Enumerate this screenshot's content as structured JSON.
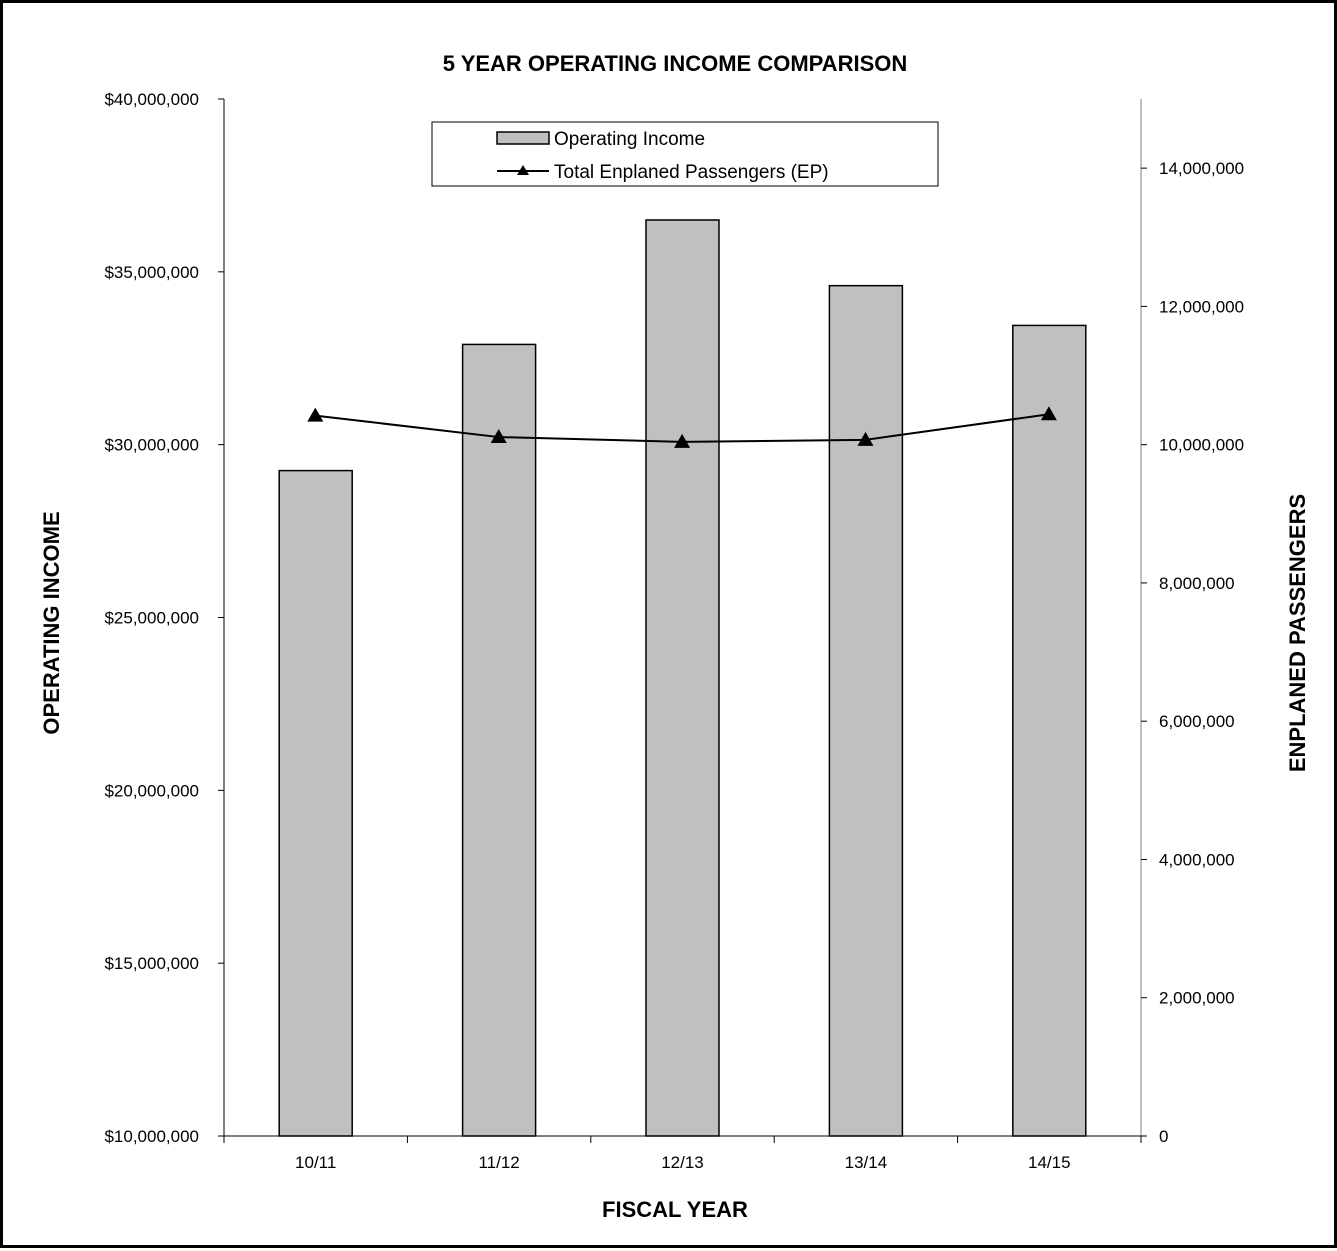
{
  "chart_data": {
    "type": "bar",
    "title": "5 YEAR OPERATING INCOME COMPARISON",
    "xlabel": "FISCAL YEAR",
    "ylabel": "OPERATING INCOME",
    "y2label": "ENPLANED PASSENGERS",
    "categories": [
      "10/11",
      "11/12",
      "12/13",
      "13/14",
      "14/15"
    ],
    "ylim": [
      10000000,
      40000000
    ],
    "y2lim": [
      0,
      15000000
    ],
    "yticks": [
      10000000,
      15000000,
      20000000,
      25000000,
      30000000,
      35000000,
      40000000
    ],
    "yticklabels": [
      "$10,000,000",
      "$15,000,000",
      "$20,000,000",
      "$25,000,000",
      "$30,000,000",
      "$35,000,000",
      "$40,000,000"
    ],
    "y2ticks": [
      0,
      2000000,
      4000000,
      6000000,
      8000000,
      10000000,
      12000000,
      14000000
    ],
    "y2ticklabels": [
      "0",
      "2,000,000",
      "4,000,000",
      "6,000,000",
      "8,000,000",
      "10,000,000",
      "12,000,000",
      "14,000,000"
    ],
    "series": [
      {
        "name": "Operating Income",
        "kind": "bar",
        "axis": "left",
        "color": "#c0c0c0",
        "values": [
          29250000,
          32900000,
          36500000,
          34600000,
          33450000
        ]
      },
      {
        "name": "Total Enplaned Passengers (EP)",
        "kind": "line",
        "axis": "right",
        "color": "#000000",
        "marker": "triangle",
        "values": [
          10420000,
          10110000,
          10040000,
          10070000,
          10440000
        ]
      }
    ],
    "legend_position": "top-center",
    "grid": false
  }
}
